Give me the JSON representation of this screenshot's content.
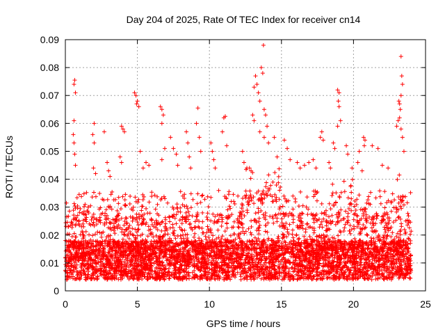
{
  "chart_data": {
    "type": "scatter",
    "title": "Day 204 of 2025, Rate Of TEC Index for receiver cn14",
    "xlabel": "GPS time / hours",
    "ylabel": "ROTI / TECUs",
    "xlim": [
      0,
      25
    ],
    "ylim": [
      0,
      0.09
    ],
    "x_ticks": [
      "0",
      "5",
      "10",
      "15",
      "20",
      "25"
    ],
    "y_ticks": [
      "0",
      "0.01",
      "0.02",
      "0.03",
      "0.04",
      "0.05",
      "0.06",
      "0.07",
      "0.08",
      "0.09"
    ],
    "grid": true,
    "marker": "+",
    "color": "#ff0000",
    "data_range_x": [
      0,
      24
    ],
    "series": [
      {
        "points": [
          [
            0.6,
            0.074
          ],
          [
            0.65,
            0.0755
          ],
          [
            0.7,
            0.071
          ],
          [
            0.6,
            0.061
          ],
          [
            0.55,
            0.056
          ],
          [
            0.6,
            0.053
          ],
          [
            0.65,
            0.049
          ],
          [
            0.7,
            0.045
          ],
          [
            2.0,
            0.06
          ],
          [
            1.9,
            0.056
          ],
          [
            2.0,
            0.053
          ],
          [
            1.95,
            0.044
          ],
          [
            2.1,
            0.042
          ],
          [
            2.7,
            0.057
          ],
          [
            2.9,
            0.046
          ],
          [
            3.0,
            0.043
          ],
          [
            3.1,
            0.041
          ],
          [
            3.9,
            0.059
          ],
          [
            4.0,
            0.058
          ],
          [
            4.1,
            0.057
          ],
          [
            3.8,
            0.048
          ],
          [
            3.9,
            0.046
          ],
          [
            4.8,
            0.071
          ],
          [
            4.9,
            0.07
          ],
          [
            5.0,
            0.068
          ],
          [
            4.95,
            0.067
          ],
          [
            5.1,
            0.066
          ],
          [
            5.2,
            0.05
          ],
          [
            5.4,
            0.044
          ],
          [
            5.6,
            0.046
          ],
          [
            5.8,
            0.045
          ],
          [
            6.6,
            0.066
          ],
          [
            6.7,
            0.065
          ],
          [
            6.8,
            0.063
          ],
          [
            6.7,
            0.06
          ],
          [
            6.9,
            0.051
          ],
          [
            6.7,
            0.047
          ],
          [
            7.3,
            0.055
          ],
          [
            7.5,
            0.051
          ],
          [
            7.7,
            0.049
          ],
          [
            7.8,
            0.045
          ],
          [
            8.4,
            0.057
          ],
          [
            8.5,
            0.053
          ],
          [
            8.6,
            0.048
          ],
          [
            8.7,
            0.044
          ],
          [
            9.1,
            0.06
          ],
          [
            9.2,
            0.0655
          ],
          [
            9.3,
            0.055
          ],
          [
            9.4,
            0.05
          ],
          [
            10.1,
            0.053
          ],
          [
            10.2,
            0.05
          ],
          [
            10.3,
            0.047
          ],
          [
            10.4,
            0.044
          ],
          [
            11.0,
            0.062
          ],
          [
            11.1,
            0.0625
          ],
          [
            10.9,
            0.057
          ],
          [
            11.2,
            0.052
          ],
          [
            12.3,
            0.05
          ],
          [
            12.4,
            0.046
          ],
          [
            12.6,
            0.044
          ],
          [
            13.1,
            0.073
          ],
          [
            13.2,
            0.077
          ],
          [
            13.3,
            0.074
          ],
          [
            13.4,
            0.071
          ],
          [
            13.5,
            0.068
          ],
          [
            13.6,
            0.08
          ],
          [
            13.7,
            0.078
          ],
          [
            13.75,
            0.088
          ],
          [
            13.0,
            0.063
          ],
          [
            13.1,
            0.061
          ],
          [
            13.8,
            0.065
          ],
          [
            13.9,
            0.063
          ],
          [
            14.0,
            0.059
          ],
          [
            13.5,
            0.057
          ],
          [
            13.8,
            0.055
          ],
          [
            14.1,
            0.053
          ],
          [
            14.5,
            0.055
          ],
          [
            14.7,
            0.048
          ],
          [
            15.2,
            0.054
          ],
          [
            15.4,
            0.051
          ],
          [
            15.6,
            0.047
          ],
          [
            16.1,
            0.046
          ],
          [
            16.3,
            0.044
          ],
          [
            16.6,
            0.045
          ],
          [
            16.9,
            0.046
          ],
          [
            17.2,
            0.047
          ],
          [
            17.4,
            0.044
          ],
          [
            17.7,
            0.055
          ],
          [
            17.8,
            0.057
          ],
          [
            17.9,
            0.054
          ],
          [
            18.3,
            0.046
          ],
          [
            18.4,
            0.044
          ],
          [
            18.6,
            0.053
          ],
          [
            18.7,
            0.051
          ],
          [
            18.9,
            0.072
          ],
          [
            19.0,
            0.071
          ],
          [
            18.95,
            0.068
          ],
          [
            19.0,
            0.066
          ],
          [
            19.1,
            0.061
          ],
          [
            18.9,
            0.059
          ],
          [
            19.5,
            0.052
          ],
          [
            19.6,
            0.049
          ],
          [
            19.9,
            0.044
          ],
          [
            20.3,
            0.046
          ],
          [
            20.7,
            0.055
          ],
          [
            20.8,
            0.054
          ],
          [
            20.75,
            0.052
          ],
          [
            20.4,
            0.05
          ],
          [
            20.6,
            0.043
          ],
          [
            21.3,
            0.052
          ],
          [
            21.7,
            0.051
          ],
          [
            22.0,
            0.045
          ],
          [
            22.4,
            0.044
          ],
          [
            23.0,
            0.059
          ],
          [
            23.1,
            0.061
          ],
          [
            23.15,
            0.068
          ],
          [
            23.2,
            0.067
          ],
          [
            23.25,
            0.065
          ],
          [
            23.3,
            0.084
          ],
          [
            23.35,
            0.077
          ],
          [
            23.4,
            0.074
          ],
          [
            23.3,
            0.07
          ],
          [
            23.2,
            0.062
          ],
          [
            23.3,
            0.058
          ],
          [
            23.4,
            0.055
          ],
          [
            23.5,
            0.05
          ]
        ]
      }
    ]
  }
}
